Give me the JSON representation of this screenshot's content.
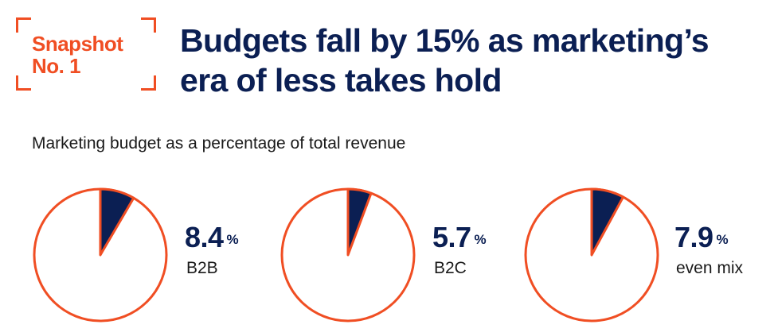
{
  "badge": {
    "line1": "Snapshot",
    "line2": "No. 1"
  },
  "headline": {
    "line1": "Budgets fall by 15% as marketing’s",
    "line2": "era of less takes hold"
  },
  "subtitle": "Marketing budget as a percentage of total revenue",
  "colors": {
    "accent": "#f04e23",
    "navy": "#0b1f53",
    "text": "#1a1a1a"
  },
  "chart_data": [
    {
      "type": "pie",
      "title": "",
      "category": "B2B",
      "value": 8.4,
      "value_label": "8.4",
      "unit": "%"
    },
    {
      "type": "pie",
      "title": "",
      "category": "B2C",
      "value": 5.7,
      "value_label": "5.7",
      "unit": "%"
    },
    {
      "type": "pie",
      "title": "",
      "category": "even mix",
      "value": 7.9,
      "value_label": "7.9",
      "unit": "%"
    }
  ]
}
